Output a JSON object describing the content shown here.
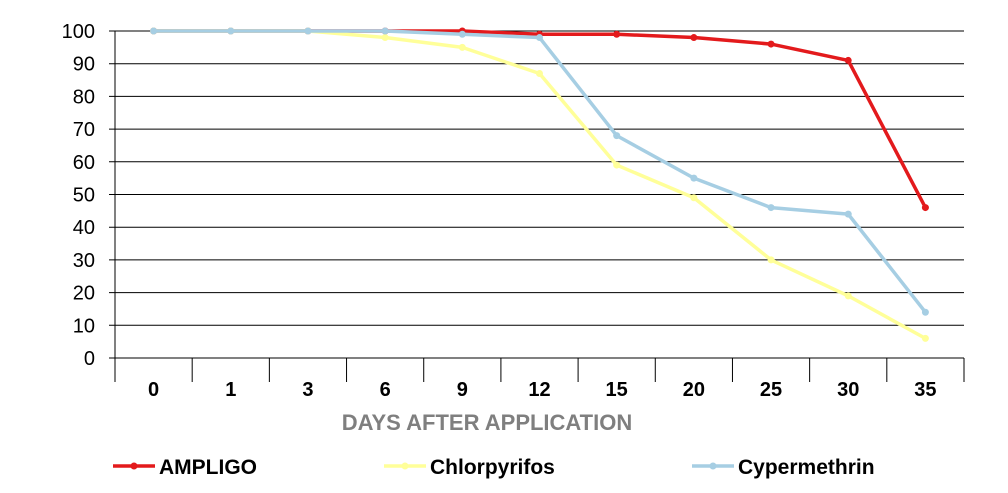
{
  "chart_data": {
    "type": "line",
    "categories": [
      "0",
      "1",
      "3",
      "6",
      "9",
      "12",
      "15",
      "20",
      "25",
      "30",
      "35"
    ],
    "series": [
      {
        "name": "AMPLIGO",
        "color": "#e31a1c",
        "values": [
          100,
          100,
          100,
          100,
          100,
          99,
          99,
          98,
          96,
          91,
          46
        ]
      },
      {
        "name": "Chlorpyrifos",
        "color": "#ffff99",
        "values": [
          100,
          100,
          100,
          98,
          95,
          87,
          59,
          49,
          30,
          19,
          6
        ]
      },
      {
        "name": "Cypermethrin",
        "color": "#a6cee3",
        "values": [
          100,
          100,
          100,
          100,
          99,
          98,
          68,
          55,
          46,
          44,
          14
        ]
      }
    ],
    "title": "",
    "xlabel": "DAYS AFTER APPLICATION",
    "xlabel_color": "#7f7f7f",
    "ylabel": "",
    "ylim": [
      0,
      100
    ],
    "yticks": [
      0,
      10,
      20,
      30,
      40,
      50,
      60,
      70,
      80,
      90,
      100
    ],
    "grid": "horizontal",
    "legend_position": "bottom"
  }
}
